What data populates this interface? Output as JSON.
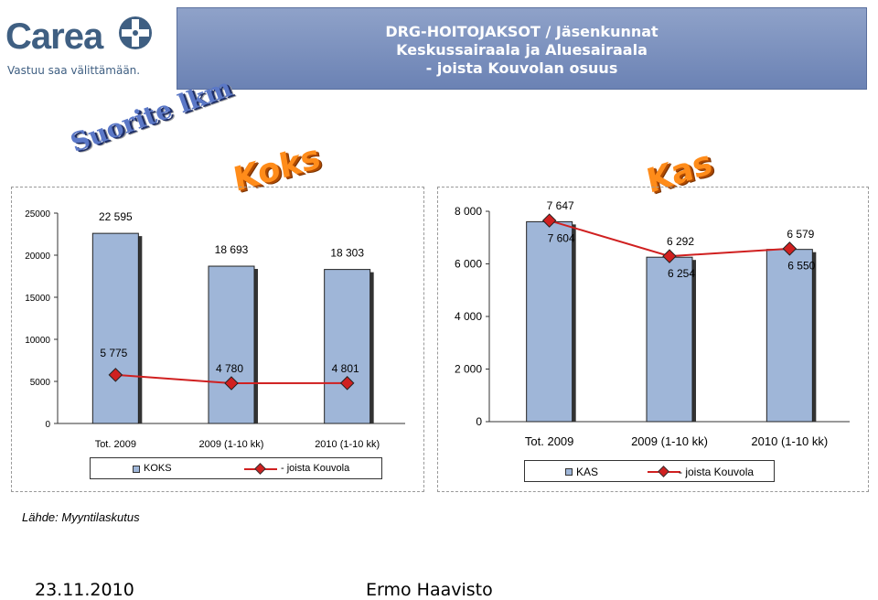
{
  "logo": {
    "wordmark": "Carea",
    "tagline": "Vastuu saa välittämään."
  },
  "header": {
    "line1": "DRG-HOITOJAKSOT  / Jäsenkunnat",
    "line2": "Keskussairaala  ja Aluesairaala",
    "line3": "- joista Kouvolan osuus"
  },
  "wordart": {
    "suorite": "Suorite lkm",
    "koks": "Koks",
    "kas": "Kas"
  },
  "colors": {
    "bar": "#9fb6d8",
    "line": "#d02020",
    "header": "#7a8fbf",
    "wordart_orange": "#ff8c1a"
  },
  "chart_data": [
    {
      "type": "bar",
      "categories": [
        "Tot. 2009",
        "2009 (1-10 kk)",
        "2010 (1-10 kk)"
      ],
      "series": [
        {
          "name": "KOKS",
          "type": "bar",
          "values": [
            22595,
            18693,
            18303
          ],
          "labels": [
            "22 595",
            "18 693",
            "18 303"
          ]
        },
        {
          "name": "- joista Kouvola",
          "type": "line",
          "values": [
            5775,
            4780,
            4801
          ],
          "labels": [
            "5 775",
            "4 780",
            "4 801"
          ]
        }
      ],
      "yticks": [
        "0",
        "5000",
        "10000",
        "15000",
        "20000",
        "25000"
      ],
      "ylim": [
        0,
        25000
      ],
      "legend": [
        "KOKS",
        "- joista Kouvola"
      ]
    },
    {
      "type": "bar",
      "categories": [
        "Tot. 2009",
        "2009 (1-10 kk)",
        "2010 (1-10 kk)"
      ],
      "series": [
        {
          "name": "KAS",
          "type": "bar",
          "values": [
            7604,
            6254,
            6550
          ],
          "labels": [
            "7 604",
            "6 254",
            "6 550"
          ]
        },
        {
          "name": "- joista Kouvola",
          "type": "line",
          "values": [
            7647,
            6292,
            6579
          ],
          "labels": [
            "7 647",
            "6 292",
            "6 579"
          ]
        }
      ],
      "yticks": [
        "0",
        "2 000",
        "4 000",
        "6 000",
        "8 000"
      ],
      "ylim": [
        0,
        8000
      ],
      "legend": [
        "KAS",
        "- joista Kouvola"
      ]
    }
  ],
  "source": "Lähde: Myyntilaskutus",
  "footer": {
    "date": "23.11.2010",
    "author": "Ermo Haavisto"
  }
}
